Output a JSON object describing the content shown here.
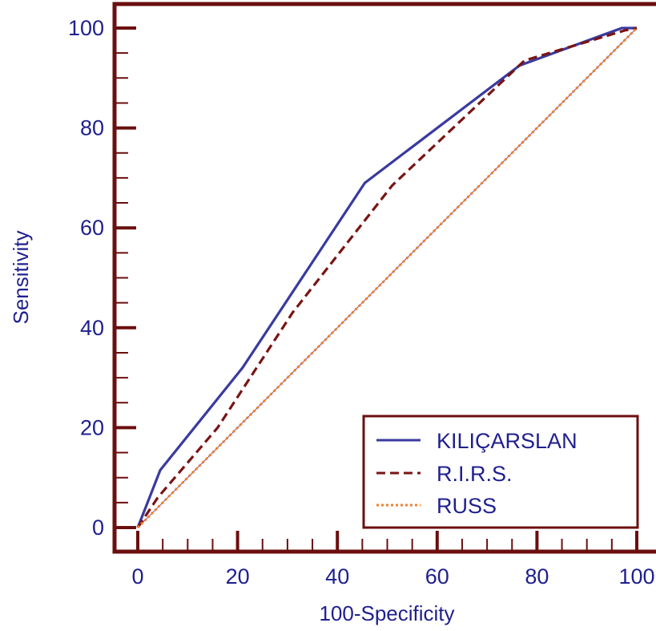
{
  "chart_data": {
    "type": "line",
    "title": "",
    "xlabel": "100-Specificity",
    "ylabel": "Sensitivity",
    "xlim": [
      0,
      100
    ],
    "ylim": [
      0,
      100
    ],
    "x_ticks": [
      0,
      20,
      40,
      60,
      80,
      100
    ],
    "y_ticks": [
      0,
      20,
      40,
      60,
      80,
      100
    ],
    "legend_position": "bottom-right",
    "grid": false,
    "colors": {
      "axis": "#6b0f0f",
      "text": "#1f1f8f",
      "diagonal": "#7a5aa0"
    },
    "series": [
      {
        "name": "KILIÇARSLAN",
        "style": "solid",
        "color": "#3a3aa0",
        "points": [
          [
            0,
            0
          ],
          [
            4.5,
            11.5
          ],
          [
            21,
            32
          ],
          [
            45.5,
            69
          ],
          [
            76.5,
            92.5
          ],
          [
            97,
            100
          ],
          [
            100,
            100
          ]
        ]
      },
      {
        "name": "R.I.R.S.",
        "style": "dashed",
        "color": "#7a1414",
        "points": [
          [
            0,
            0
          ],
          [
            4,
            6
          ],
          [
            16,
            20
          ],
          [
            31,
            43
          ],
          [
            51,
            68.5
          ],
          [
            77.5,
            93.5
          ],
          [
            97.5,
            99.5
          ],
          [
            100,
            100
          ]
        ]
      },
      {
        "name": "RUSS",
        "style": "dotted",
        "color": "#f08030",
        "points": [
          [
            0,
            0
          ],
          [
            100,
            100
          ]
        ]
      }
    ]
  }
}
